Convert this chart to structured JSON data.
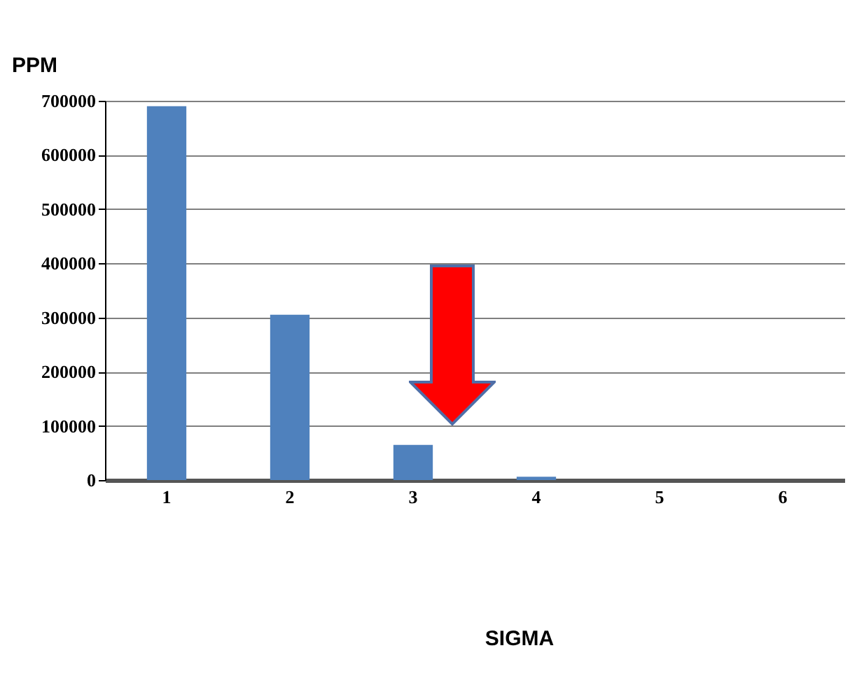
{
  "chart_data": {
    "type": "bar",
    "annotations": [
      "SIGMA"
    ],
    "ylabel": "PPM",
    "categories": [
      "1",
      "2",
      "3",
      "4",
      "5",
      "6"
    ],
    "values": [
      690000,
      305000,
      65000,
      6000,
      0,
      0
    ],
    "color": "#4f81bd",
    "ylim": [
      0,
      700000
    ],
    "yticks": [
      0,
      100000,
      200000,
      300000,
      400000,
      500000,
      600000,
      700000
    ],
    "grid": "y"
  }
}
